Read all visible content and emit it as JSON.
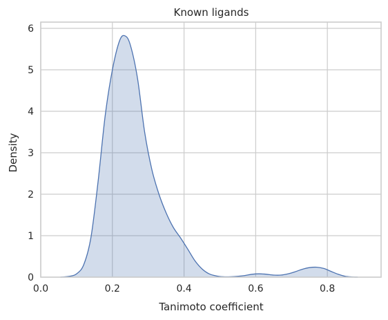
{
  "chart_data": {
    "type": "area",
    "title": "Known ligands",
    "xlabel": "Tanimoto coefficient",
    "ylabel": "Density",
    "xlim": [
      0.0,
      0.95
    ],
    "ylim": [
      0,
      6.15
    ],
    "xticks": [
      0.0,
      0.2,
      0.4,
      0.6,
      0.8
    ],
    "xtick_labels": [
      "0.0",
      "0.2",
      "0.4",
      "0.6",
      "0.8"
    ],
    "yticks": [
      0,
      1,
      2,
      3,
      4,
      5,
      6
    ],
    "ytick_labels": [
      "0",
      "1",
      "2",
      "3",
      "4",
      "5",
      "6"
    ],
    "grid": true,
    "series": [
      {
        "x": [
          0.055,
          0.08,
          0.1,
          0.12,
          0.14,
          0.16,
          0.18,
          0.2,
          0.22,
          0.235,
          0.25,
          0.27,
          0.29,
          0.31,
          0.33,
          0.35,
          0.37,
          0.39,
          0.41,
          0.43,
          0.45,
          0.47,
          0.49,
          0.51,
          0.53,
          0.55,
          0.57,
          0.59,
          0.61,
          0.63,
          0.65,
          0.67,
          0.69,
          0.71,
          0.73,
          0.75,
          0.77,
          0.79,
          0.81,
          0.83,
          0.85,
          0.87,
          0.885
        ],
        "y": [
          0.0,
          0.02,
          0.08,
          0.3,
          0.95,
          2.3,
          3.9,
          5.0,
          5.7,
          5.82,
          5.6,
          4.8,
          3.5,
          2.6,
          2.0,
          1.55,
          1.2,
          0.95,
          0.68,
          0.4,
          0.2,
          0.08,
          0.03,
          0.01,
          0.01,
          0.02,
          0.04,
          0.07,
          0.08,
          0.07,
          0.05,
          0.05,
          0.08,
          0.13,
          0.19,
          0.23,
          0.24,
          0.21,
          0.14,
          0.07,
          0.02,
          0.005,
          0.0
        ],
        "line_color": "#4c72b0",
        "fill_color": "#4c72b0",
        "fill_opacity": 0.25
      }
    ]
  }
}
